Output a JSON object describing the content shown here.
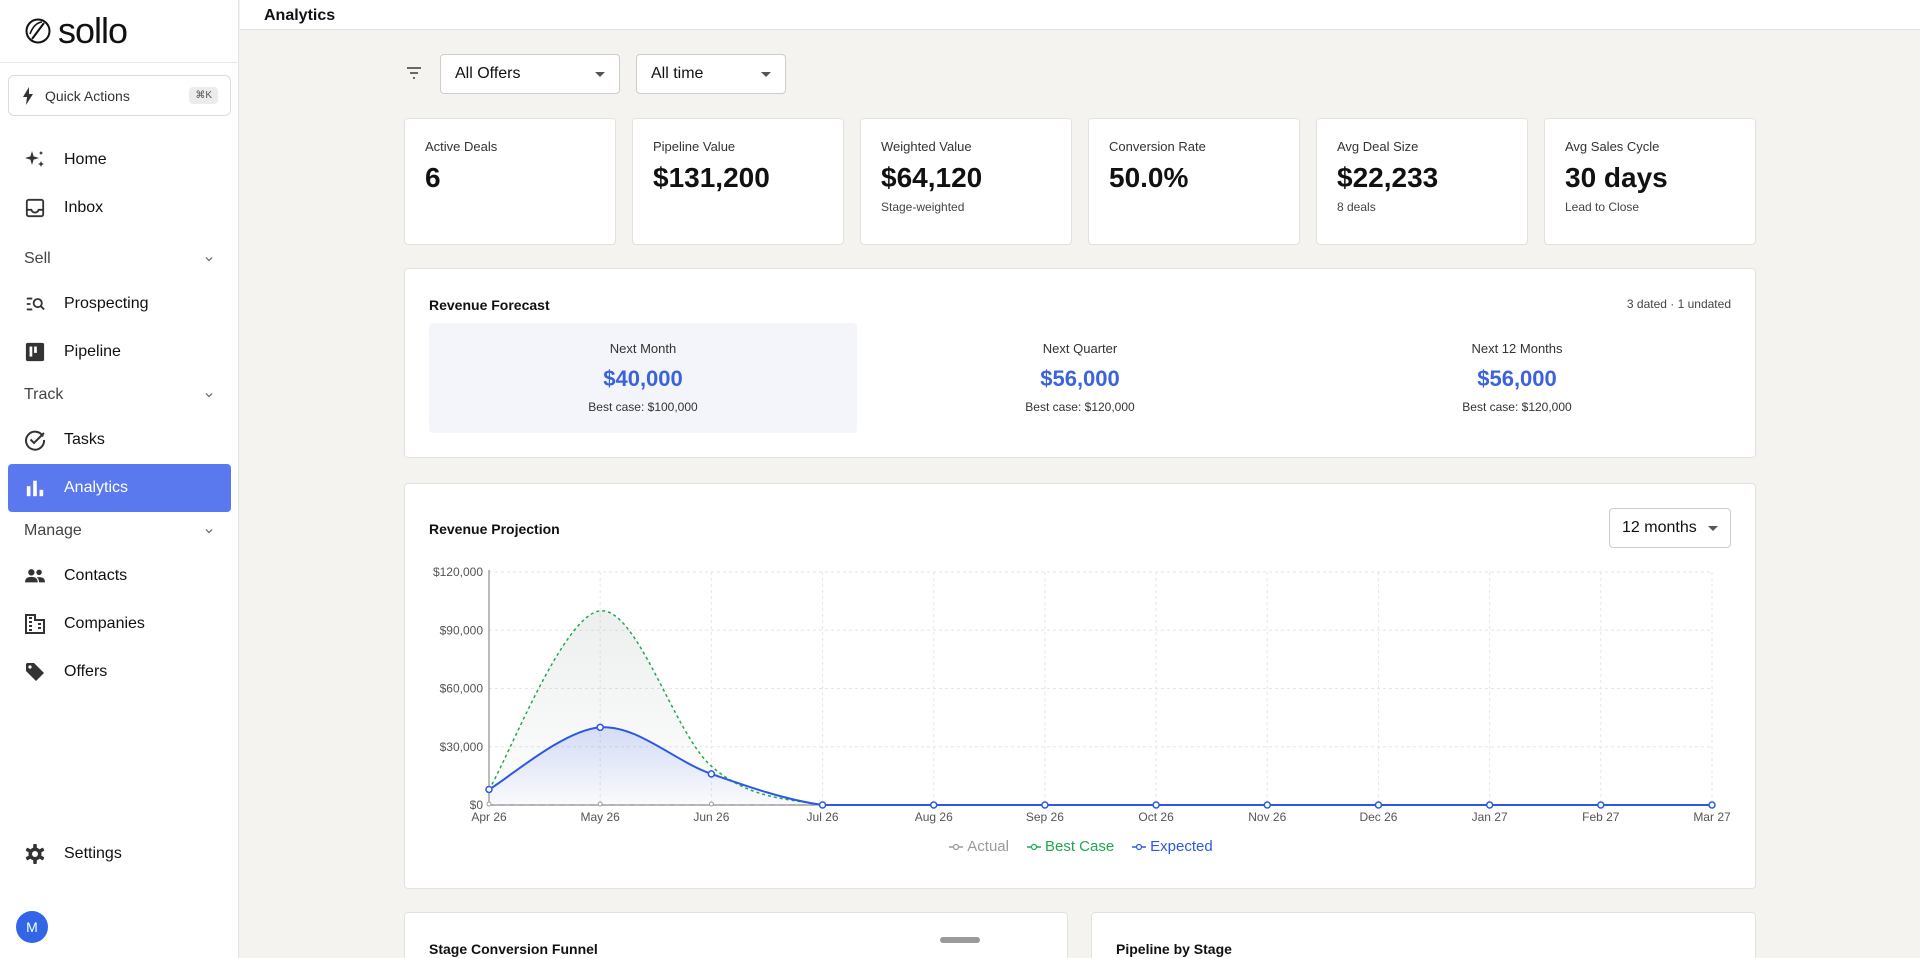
{
  "app": {
    "name": "sollo"
  },
  "sidebar": {
    "quick_actions": {
      "label": "Quick Actions",
      "shortcut": "⌘K"
    },
    "items": {
      "home": "Home",
      "inbox": "Inbox",
      "sell": "Sell",
      "prospecting": "Prospecting",
      "pipeline": "Pipeline",
      "track": "Track",
      "tasks": "Tasks",
      "analytics": "Analytics",
      "manage": "Manage",
      "contacts": "Contacts",
      "companies": "Companies",
      "offers": "Offers",
      "settings": "Settings"
    },
    "active": "analytics",
    "avatar_initial": "M"
  },
  "header": {
    "title": "Analytics"
  },
  "filters": {
    "offer": "All Offers",
    "period": "All time"
  },
  "kpis": [
    {
      "label": "Active Deals",
      "value": "6",
      "sub": ""
    },
    {
      "label": "Pipeline Value",
      "value": "$131,200",
      "sub": ""
    },
    {
      "label": "Weighted Value",
      "value": "$64,120",
      "sub": "Stage-weighted"
    },
    {
      "label": "Conversion Rate",
      "value": "50.0%",
      "sub": ""
    },
    {
      "label": "Avg Deal Size",
      "value": "$22,233",
      "sub": "8 deals"
    },
    {
      "label": "Avg Sales Cycle",
      "value": "30 days",
      "sub": "Lead to Close"
    }
  ],
  "forecast": {
    "title": "Revenue Forecast",
    "meta": "3 dated · 1 undated",
    "columns": [
      {
        "label": "Next Month",
        "amount": "$40,000",
        "best": "Best case: $100,000"
      },
      {
        "label": "Next Quarter",
        "amount": "$56,000",
        "best": "Best case: $120,000"
      },
      {
        "label": "Next 12 Months",
        "amount": "$56,000",
        "best": "Best case: $120,000"
      }
    ]
  },
  "projection": {
    "title": "Revenue Projection",
    "range_select": "12 months"
  },
  "chart_data": {
    "type": "line",
    "x": [
      "Apr 26",
      "May 26",
      "Jun 26",
      "Jul 26",
      "Aug 26",
      "Sep 26",
      "Oct 26",
      "Nov 26",
      "Dec 26",
      "Jan 27",
      "Feb 27",
      "Mar 27"
    ],
    "series": [
      {
        "name": "Actual",
        "values": [
          0,
          0,
          0,
          0,
          0,
          0,
          0,
          0,
          0,
          0,
          0,
          0
        ],
        "color": "#9a9a9a"
      },
      {
        "name": "Best Case",
        "values": [
          8000,
          100000,
          20000,
          0,
          0,
          0,
          0,
          0,
          0,
          0,
          0,
          0
        ],
        "color": "#1fa84f"
      },
      {
        "name": "Expected",
        "values": [
          8000,
          40000,
          16000,
          0,
          0,
          0,
          0,
          0,
          0,
          0,
          0,
          0
        ],
        "color": "#2b59e3"
      }
    ],
    "yticks": [
      "$0",
      "$30,000",
      "$60,000",
      "$90,000",
      "$120,000"
    ],
    "ylim": [
      0,
      120000
    ],
    "grid": true,
    "legend": "bottom"
  },
  "bottom": {
    "funnel_title": "Stage Conversion Funnel",
    "pipeline_title": "Pipeline by Stage"
  },
  "colors": {
    "accent": "#5b79ee",
    "forecast_amount": "#3b63dc"
  }
}
